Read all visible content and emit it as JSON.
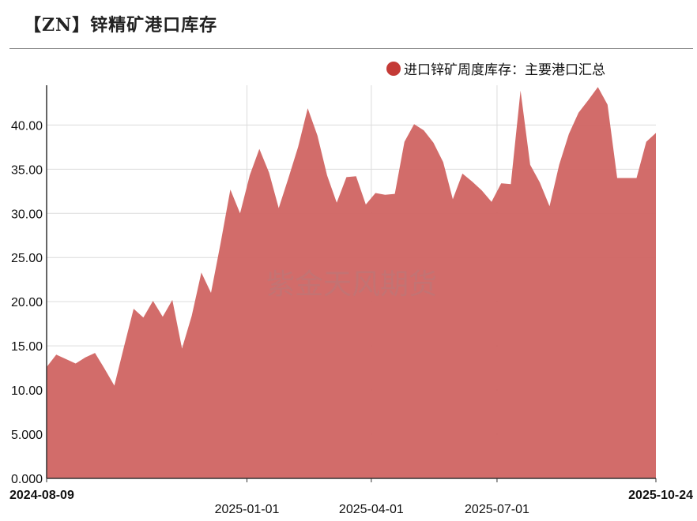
{
  "header": {
    "title": "【ZN】锌精矿港口库存"
  },
  "watermark": "紫金天风期货",
  "chart_data": {
    "type": "area",
    "legend_position": "top-right",
    "grid": true,
    "ylim": [
      0,
      44.5
    ],
    "yticks": [
      {
        "value": 0,
        "label": "0.000"
      },
      {
        "value": 5,
        "label": "5.000"
      },
      {
        "value": 10,
        "label": "10.00"
      },
      {
        "value": 15,
        "label": "15.00"
      },
      {
        "value": 20,
        "label": "20.00"
      },
      {
        "value": 25,
        "label": "25.00"
      },
      {
        "value": 30,
        "label": "30.00"
      },
      {
        "value": 35,
        "label": "35.00"
      },
      {
        "value": 40,
        "label": "40.00"
      }
    ],
    "xrange": [
      "2024-08-09",
      "2025-10-24"
    ],
    "xticks": [
      {
        "date": "2024-08-09",
        "label": "2024-08-09",
        "bold": true
      },
      {
        "date": "2025-01-01",
        "label": "2025-01-01",
        "bold": false
      },
      {
        "date": "2025-04-01",
        "label": "2025-04-01",
        "bold": false
      },
      {
        "date": "2025-07-01",
        "label": "2025-07-01",
        "bold": false
      },
      {
        "date": "2025-10-24",
        "label": "2025-10-24",
        "bold": true
      }
    ],
    "series": [
      {
        "name": "进口锌矿周度库存：主要港口汇总",
        "color": "#d06462",
        "marker_color": "#c43a36",
        "points": [
          [
            "2024-08-09",
            12.6
          ],
          [
            "2024-08-16",
            14.0
          ],
          [
            "2024-08-23",
            13.5
          ],
          [
            "2024-08-30",
            13.0
          ],
          [
            "2024-09-06",
            13.7
          ],
          [
            "2024-09-13",
            14.2
          ],
          [
            "2024-09-20",
            12.4
          ],
          [
            "2024-09-27",
            10.5
          ],
          [
            "2024-10-04",
            14.9
          ],
          [
            "2024-10-11",
            19.2
          ],
          [
            "2024-10-18",
            18.2
          ],
          [
            "2024-10-25",
            20.1
          ],
          [
            "2024-11-01",
            18.3
          ],
          [
            "2024-11-08",
            20.2
          ],
          [
            "2024-11-15",
            14.7
          ],
          [
            "2024-11-22",
            18.4
          ],
          [
            "2024-11-29",
            23.3
          ],
          [
            "2024-12-06",
            21.0
          ],
          [
            "2024-12-13",
            26.7
          ],
          [
            "2024-12-20",
            32.7
          ],
          [
            "2024-12-27",
            30.0
          ],
          [
            "2025-01-03",
            34.3
          ],
          [
            "2025-01-10",
            37.3
          ],
          [
            "2025-01-17",
            34.6
          ],
          [
            "2025-01-24",
            30.6
          ],
          [
            "2025-01-31",
            34.0
          ],
          [
            "2025-02-07",
            37.5
          ],
          [
            "2025-02-14",
            41.9
          ],
          [
            "2025-02-21",
            38.8
          ],
          [
            "2025-02-28",
            34.3
          ],
          [
            "2025-03-07",
            31.2
          ],
          [
            "2025-03-14",
            34.1
          ],
          [
            "2025-03-21",
            34.2
          ],
          [
            "2025-03-28",
            31.0
          ],
          [
            "2025-04-04",
            32.3
          ],
          [
            "2025-04-11",
            32.1
          ],
          [
            "2025-04-18",
            32.2
          ],
          [
            "2025-04-25",
            38.1
          ],
          [
            "2025-05-02",
            40.1
          ],
          [
            "2025-05-09",
            39.4
          ],
          [
            "2025-05-16",
            38.0
          ],
          [
            "2025-05-23",
            35.8
          ],
          [
            "2025-05-30",
            31.6
          ],
          [
            "2025-06-06",
            34.5
          ],
          [
            "2025-06-13",
            33.6
          ],
          [
            "2025-06-20",
            32.6
          ],
          [
            "2025-06-27",
            31.3
          ],
          [
            "2025-07-04",
            33.4
          ],
          [
            "2025-07-11",
            33.3
          ],
          [
            "2025-07-18",
            43.9
          ],
          [
            "2025-07-25",
            35.5
          ],
          [
            "2025-08-01",
            33.5
          ],
          [
            "2025-08-08",
            30.8
          ],
          [
            "2025-08-15",
            35.5
          ],
          [
            "2025-08-22",
            39.0
          ],
          [
            "2025-08-29",
            41.4
          ],
          [
            "2025-09-05",
            42.8
          ],
          [
            "2025-09-12",
            44.3
          ],
          [
            "2025-09-19",
            42.3
          ],
          [
            "2025-09-26",
            34.0
          ],
          [
            "2025-10-03",
            34.0
          ],
          [
            "2025-10-10",
            34.0
          ],
          [
            "2025-10-17",
            38.1
          ],
          [
            "2025-10-24",
            39.1
          ]
        ]
      }
    ]
  }
}
